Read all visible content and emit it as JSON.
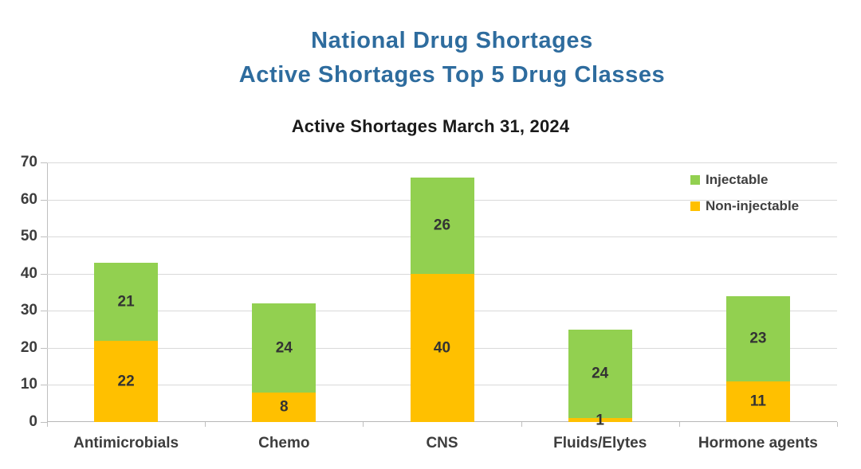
{
  "header": {
    "title_line1": "National Drug Shortages",
    "title_line2": "Active Shortages Top 5 Drug Classes",
    "title_color": "#2E6C9E"
  },
  "chart_data": {
    "type": "bar",
    "stacked": true,
    "title": "Active Shortages March 31, 2024",
    "categories": [
      "Antimicrobials",
      "Chemo",
      "CNS",
      "Fluids/Elytes",
      "Hormone agents"
    ],
    "series": [
      {
        "name": "Non-injectable",
        "color": "#FFC000",
        "values": [
          22,
          8,
          40,
          1,
          11
        ]
      },
      {
        "name": "Injectable",
        "color": "#92D050",
        "values": [
          21,
          24,
          26,
          24,
          23
        ]
      }
    ],
    "legend_order": [
      "Injectable",
      "Non-injectable"
    ],
    "legend_position": "top-right",
    "xlabel": "",
    "ylabel": "",
    "ylim": [
      0,
      70
    ],
    "ytick_step": 10,
    "grid": true,
    "data_labels": true
  }
}
